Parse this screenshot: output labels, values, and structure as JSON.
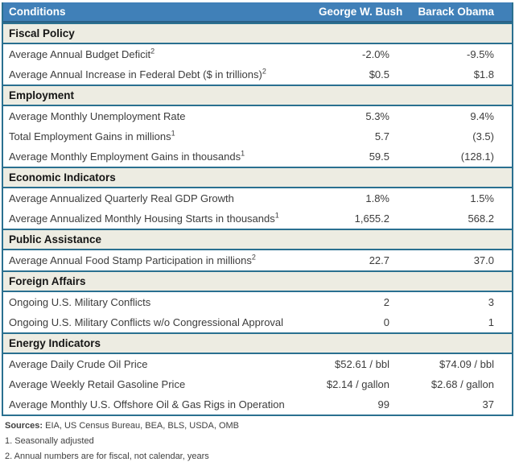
{
  "colors": {
    "header_bg": "#4080B8",
    "header_border": "#2B6187",
    "section_border_teal": "#2A7090",
    "section_bg": "#EDECE2",
    "header_text": "#FFFFFF",
    "row_text": "#3C3C3C"
  },
  "chart_data": {
    "type": "table",
    "title": "Conditions",
    "columns": [
      "Conditions",
      "George W. Bush",
      "Barack Obama"
    ],
    "sections": [
      {
        "title": "Fiscal Policy",
        "rows": [
          {
            "label": "Average Annual Budget Deficit",
            "sup": "2",
            "bush": "-2.0%",
            "obama": "-9.5%"
          },
          {
            "label": "Average Annual Increase in Federal Debt ($ in trillions)",
            "sup": "2",
            "bush": "$0.5",
            "obama": "$1.8"
          }
        ]
      },
      {
        "title": "Employment",
        "rows": [
          {
            "label": "Average Monthly Unemployment Rate",
            "sup": "",
            "bush": "5.3%",
            "obama": "9.4%"
          },
          {
            "label": "Total Employment Gains in millions",
            "sup": "1",
            "bush": "5.7",
            "obama": "(3.5)"
          },
          {
            "label": "Average Monthly Employment Gains in thousands",
            "sup": "1",
            "bush": "59.5",
            "obama": "(128.1)"
          }
        ]
      },
      {
        "title": "Economic Indicators",
        "rows": [
          {
            "label": "Average Annualized Quarterly Real GDP Growth",
            "sup": "",
            "bush": "1.8%",
            "obama": "1.5%"
          },
          {
            "label": "Average Annualized Monthly Housing Starts in thousands",
            "sup": "1",
            "bush": "1,655.2",
            "obama": "568.2"
          }
        ]
      },
      {
        "title": "Public Assistance",
        "rows": [
          {
            "label": "Average Annual Food Stamp Participation in millions",
            "sup": "2",
            "bush": "22.7",
            "obama": "37.0"
          }
        ]
      },
      {
        "title": "Foreign Affairs",
        "rows": [
          {
            "label": "Ongoing U.S. Military Conflicts",
            "sup": "",
            "bush": "2",
            "obama": "3"
          },
          {
            "label": "Ongoing U.S. Military Conflicts w/o Congressional Approval",
            "sup": "",
            "bush": "0",
            "obama": "1"
          }
        ]
      },
      {
        "title": "Energy Indicators",
        "rows": [
          {
            "label": "Average Daily Crude Oil Price",
            "sup": "",
            "bush": "$52.61 / bbl",
            "obama": "$74.09 / bbl"
          },
          {
            "label": "Average Weekly Retail Gasoline Price",
            "sup": "",
            "bush": "$2.14 / gallon",
            "obama": "$2.68 / gallon"
          },
          {
            "label": "Average Monthly U.S. Offshore Oil & Gas Rigs in Operation",
            "sup": "",
            "bush": "99",
            "obama": "37"
          }
        ]
      }
    ]
  },
  "footer": {
    "sources_label": "Sources:",
    "sources_text": " EIA, US Census Bureau, BEA, BLS, USDA, OMB",
    "notes": [
      "1. Seasonally adjusted",
      "2. Annual numbers are for fiscal, not calendar, years"
    ]
  }
}
